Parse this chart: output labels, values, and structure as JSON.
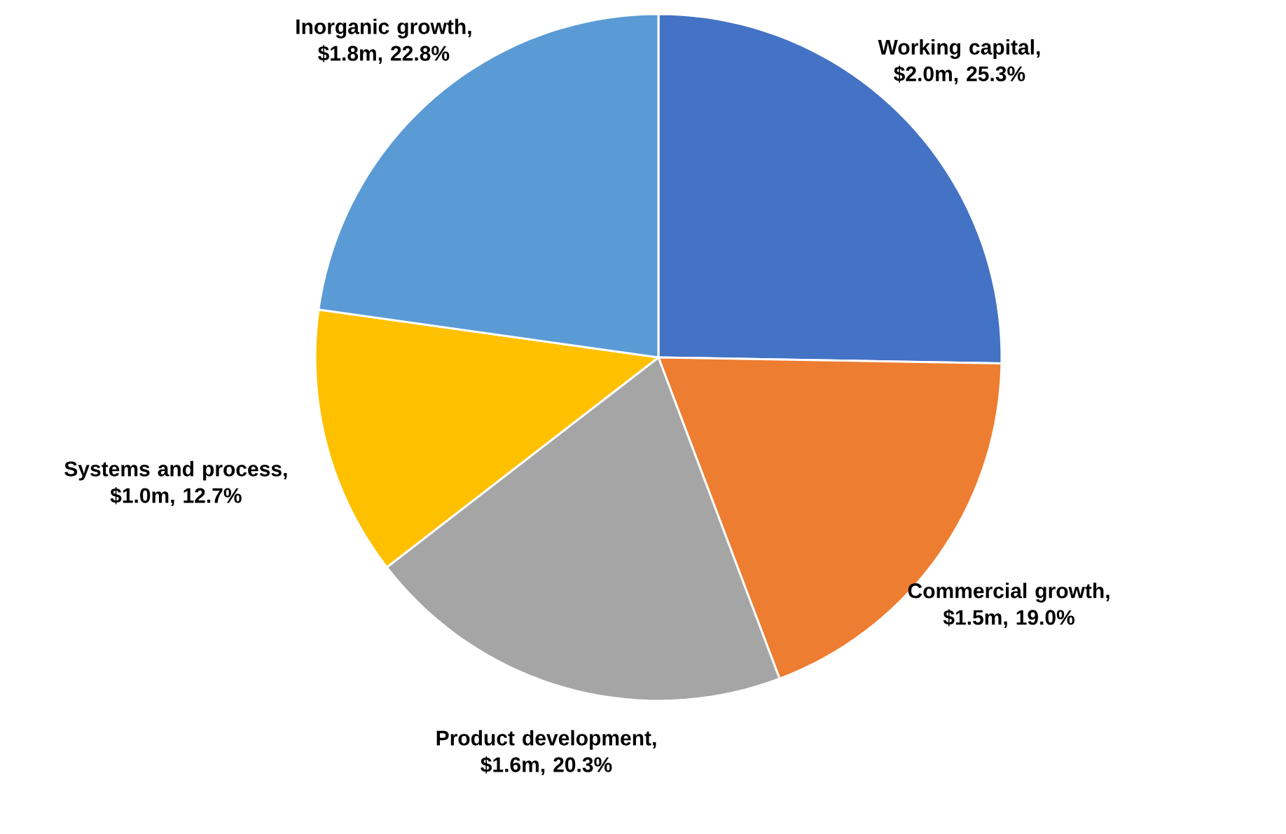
{
  "chart_data": {
    "type": "pie",
    "categories": [
      "Working capital",
      "Commercial growth",
      "Product development",
      "Systems and process",
      "Inorganic growth"
    ],
    "values": [
      25.3,
      19.0,
      20.3,
      12.7,
      22.8
    ],
    "value_labels": [
      ", $2.0m, 25.3%",
      ", $1.5m, 19.0%",
      ", $1.6m, 20.3%",
      ", $1.0m, 12.7%",
      ", $1.8m, 22.8%"
    ],
    "colors": [
      "#4472c4",
      "#ed7d31",
      "#a5a5a5",
      "#ffc000",
      "#5b9bd5"
    ],
    "legend": false
  }
}
